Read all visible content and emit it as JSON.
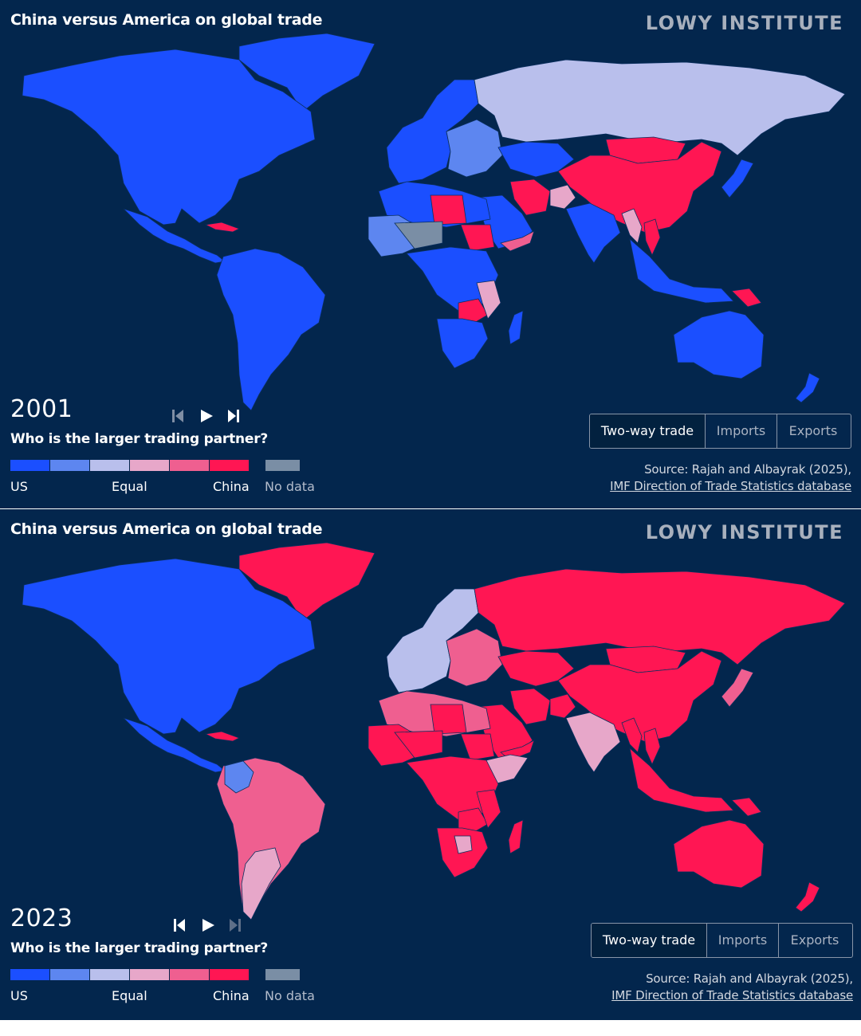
{
  "colors": {
    "background": "#03264d",
    "us_strong": "#1b4fff",
    "us_medium": "#5d86f0",
    "us_light": "#b9bfec",
    "equal_light": "#e7a7c9",
    "china_medium": "#ef5f90",
    "china_strong": "#ff1653",
    "no_data": "#7a8ea5"
  },
  "panels": [
    {
      "title": "China versus America on global trade",
      "brand": "LOWY INSTITUTE",
      "year": "2001",
      "controls": [
        "skip-back-icon",
        "play-icon",
        "skip-forward-icon"
      ],
      "question": "Who is the larger trading partner?",
      "legend": {
        "colors": [
          "#1b4fff",
          "#5d86f0",
          "#b9bfec",
          "#e7a7c9",
          "#ef5f90",
          "#ff1653"
        ],
        "no_data_color": "#7a8ea5",
        "labels": {
          "us": "US",
          "equal": "Equal",
          "china": "China",
          "no_data": "No data"
        }
      },
      "tabs": [
        "Two-way trade",
        "Imports",
        "Exports"
      ],
      "active_tab": "Two-way trade",
      "source_line1": "Source: Rajah and Albayrak (2025),",
      "source_line2": "IMF Direction of Trade Statistics database",
      "map_regions": {
        "north_america": "us_strong",
        "greenland": "us_strong",
        "central_america": "us_strong",
        "cuba": "china_strong",
        "south_america": "us_strong",
        "western_europe": "us_strong",
        "eastern_europe": "us_medium",
        "russia": "us_light",
        "china": "china_strong",
        "mongolia": "china_strong",
        "north_africa": "us_strong",
        "libya": "china_strong",
        "sudan": "china_strong",
        "west_africa": "us_medium",
        "sahel": "no_data",
        "central_africa": "us_strong",
        "zambia": "china_strong",
        "mozambique": "equal_light",
        "southern_africa": "us_strong",
        "iran": "china_strong",
        "afghanistan": "equal_light",
        "arabia": "us_strong",
        "yemen": "china_medium",
        "central_asia": "us_strong",
        "india": "us_strong",
        "myanmar": "equal_light",
        "vietnam": "china_strong",
        "southeast_asia": "us_strong",
        "japan": "us_strong",
        "png": "china_strong",
        "australia": "us_strong",
        "new_zealand": "us_strong"
      }
    },
    {
      "title": "China versus America on global trade",
      "brand": "LOWY INSTITUTE",
      "year": "2023",
      "controls": [
        "skip-back-icon",
        "play-icon",
        "skip-forward-icon"
      ],
      "question": "Who is the larger trading partner?",
      "legend": {
        "colors": [
          "#1b4fff",
          "#5d86f0",
          "#b9bfec",
          "#e7a7c9",
          "#ef5f90",
          "#ff1653"
        ],
        "no_data_color": "#7a8ea5",
        "labels": {
          "us": "US",
          "equal": "Equal",
          "china": "China",
          "no_data": "No data"
        }
      },
      "tabs": [
        "Two-way trade",
        "Imports",
        "Exports"
      ],
      "active_tab": "Two-way trade",
      "source_line1": "Source: Rajah and Albayrak (2025),",
      "source_line2": "IMF Direction of Trade Statistics database",
      "map_regions": {
        "north_america": "us_strong",
        "greenland": "china_strong",
        "central_america": "us_strong",
        "cuba": "china_strong",
        "south_america": "china_medium",
        "colombia": "us_medium",
        "southern_cone": "equal_light",
        "western_europe": "us_light",
        "eastern_europe": "china_medium",
        "russia": "china_strong",
        "china": "china_strong",
        "mongolia": "china_strong",
        "north_africa": "china_medium",
        "libya": "china_strong",
        "sudan": "china_strong",
        "west_africa": "china_strong",
        "sahel": "china_strong",
        "central_africa": "china_strong",
        "zambia": "china_strong",
        "mozambique": "china_strong",
        "southern_africa": "china_strong",
        "botswana": "equal_light",
        "iran": "china_strong",
        "afghanistan": "china_strong",
        "arabia": "china_strong",
        "yemen": "china_strong",
        "horn_of_africa": "equal_light",
        "central_asia": "china_strong",
        "india": "equal_light",
        "myanmar": "china_strong",
        "vietnam": "china_strong",
        "southeast_asia": "china_strong",
        "japan": "china_medium",
        "png": "china_strong",
        "australia": "china_strong",
        "new_zealand": "china_strong"
      }
    }
  ]
}
